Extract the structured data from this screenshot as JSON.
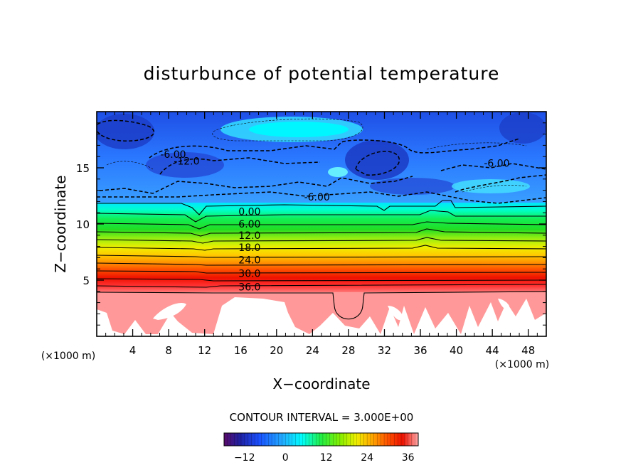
{
  "chart_data": {
    "type": "heatmap",
    "title": "disturbunce of potential temperature",
    "xlabel": "X−coordinate",
    "ylabel": "Z−coordinate",
    "x_unit": "(×1000 m)",
    "z_unit": "(×1000 m)",
    "xlim": [
      0,
      50
    ],
    "ylim": [
      0,
      20
    ],
    "x_ticks": [
      4,
      8,
      12,
      16,
      20,
      24,
      28,
      32,
      36,
      40,
      44,
      48
    ],
    "y_ticks": [
      5,
      10,
      15
    ],
    "contour_interval_label": "CONTOUR INTERVAL = 3.000E+00",
    "contour_labels": [
      {
        "text": "0.00",
        "x": 17.0,
        "z": 11.1
      },
      {
        "text": "6.00",
        "x": 17.0,
        "z": 10.0
      },
      {
        "text": "12.0",
        "x": 17.0,
        "z": 9.0
      },
      {
        "text": "18.0",
        "x": 17.0,
        "z": 7.9
      },
      {
        "text": "24.0",
        "x": 17.0,
        "z": 6.8
      },
      {
        "text": "30.0",
        "x": 17.0,
        "z": 5.6
      },
      {
        "text": "36.0",
        "x": 17.0,
        "z": 4.4
      },
      {
        "text": "-6.00",
        "x": 24.5,
        "z": 12.4
      },
      {
        "text": "-6.00",
        "x": 44.5,
        "z": 15.4
      },
      {
        "text": "-6.00",
        "x": 8.5,
        "z": 16.2
      },
      {
        "text": "-12.0",
        "x": 10.0,
        "z": 15.6
      }
    ],
    "colorbar": {
      "min": -18,
      "max": 39,
      "ticks": [
        "−12",
        "0",
        "12",
        "24",
        "36"
      ],
      "tick_values": [
        -12,
        0,
        12,
        24,
        36
      ]
    },
    "colors": {
      "deep_blue": "#1a3fd8",
      "blue": "#2f6fff",
      "cyan": "#00f0ff",
      "green": "#22dd22",
      "yellow": "#eeee00",
      "orange": "#ff8800",
      "red": "#ee1100",
      "pink": "#ff9999"
    }
  }
}
